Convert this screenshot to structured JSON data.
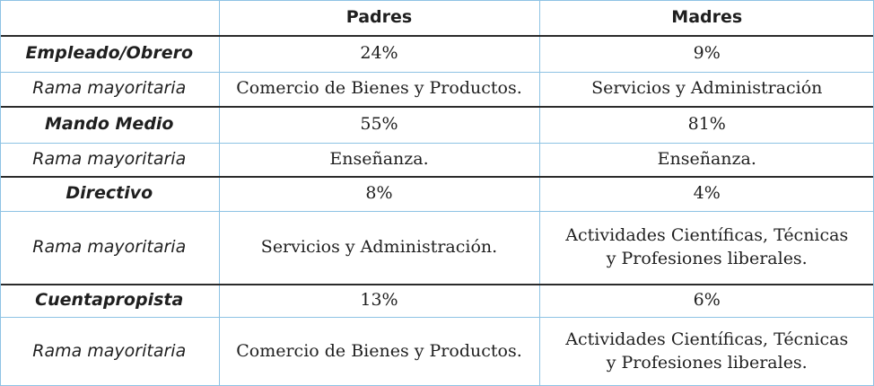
{
  "table": {
    "headers": [
      "",
      "Padres",
      "Madres"
    ],
    "rows": [
      {
        "label": "Empleado/Obrero",
        "padres": "24%",
        "madres": "9%"
      },
      {
        "label": "Rama mayoritaria",
        "padres": "Comercio de Bienes y Productos.",
        "madres": "Servicios y Administración"
      },
      {
        "label": "Mando Medio",
        "padres": "55%",
        "madres": "81%"
      },
      {
        "label": "Rama mayoritaria",
        "padres": "Enseñanza.",
        "madres": "Enseñanza."
      },
      {
        "label": "Directivo",
        "padres": "8%",
        "madres": "4%"
      },
      {
        "label": "Rama mayoritaria",
        "padres": "Servicios y Administración.",
        "madres": "Actividades Científicas, Técnicas\ny Profesiones liberales."
      },
      {
        "label": "Cuentapropista",
        "padres": "13%",
        "madres": "6%"
      },
      {
        "label": "Rama mayoritaria",
        "padres": "Comercio de Bienes y Productos.",
        "madres": "Actividades Científicas, Técnicas\ny Profesiones liberales."
      }
    ]
  }
}
